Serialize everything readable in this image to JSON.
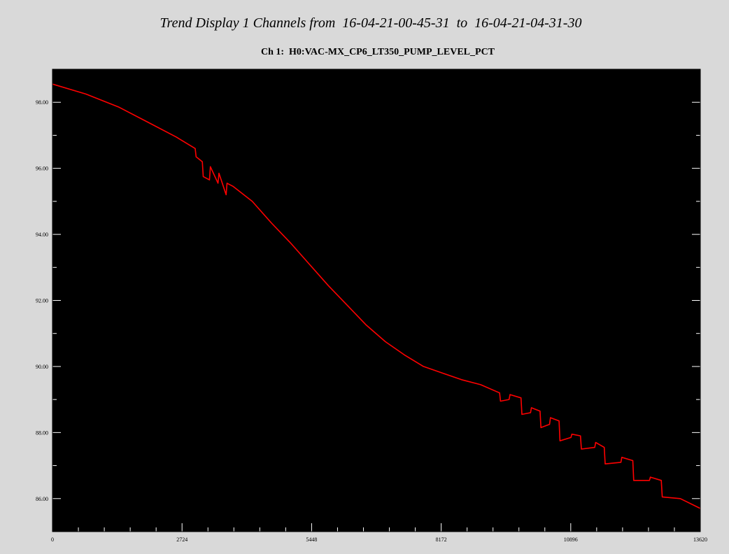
{
  "header": {
    "title": "Trend Display 1 Channels from  16-04-21-00-45-31  to  16-04-21-04-31-30",
    "subtitle": "Ch 1:  H0:VAC-MX_CP6_LT350_PUMP_LEVEL_PCT"
  },
  "colors": {
    "background": "#d9d9d9",
    "plot_background": "#000000",
    "series": "#ff0000"
  },
  "chart_data": {
    "type": "line",
    "title": "Trend Display 1 Channels from  16-04-21-00-45-31  to  16-04-21-04-31-30",
    "subtitle": "Ch 1:  H0:VAC-MX_CP6_LT350_PUMP_LEVEL_PCT",
    "xlabel": "",
    "ylabel": "",
    "xlim": [
      0,
      13620
    ],
    "ylim": [
      85.0,
      99.0
    ],
    "x_ticks": [
      0,
      2724,
      5448,
      8172,
      10896,
      13620
    ],
    "x_tick_labels": [
      "0",
      "2724",
      "5448",
      "8172",
      "10896",
      "13620"
    ],
    "y_ticks": [
      86,
      88,
      90,
      92,
      94,
      96,
      98
    ],
    "y_tick_labels": [
      "86.00",
      "88.00",
      "90.00",
      "92.00",
      "94.00",
      "96.00",
      "98.00"
    ],
    "grid": false,
    "series": [
      {
        "color": "#ff0000",
        "x": [
          0,
          700,
          1400,
          2000,
          2600,
          3000,
          3020,
          3150,
          3170,
          3300,
          3320,
          3480,
          3500,
          3650,
          3670,
          3800,
          4200,
          4600,
          5000,
          5400,
          5800,
          6200,
          6600,
          7000,
          7400,
          7800,
          8200,
          8600,
          9000,
          9400,
          9420,
          9600,
          9620,
          9850,
          9870,
          10050,
          10070,
          10250,
          10270,
          10450,
          10470,
          10650,
          10670,
          10900,
          10920,
          11100,
          11120,
          11400,
          11420,
          11600,
          11620,
          11950,
          11970,
          12200,
          12220,
          12550,
          12570,
          12800,
          12820,
          13200,
          13620
        ],
        "y": [
          98.55,
          98.25,
          97.85,
          97.4,
          96.95,
          96.6,
          96.35,
          96.2,
          95.75,
          95.65,
          96.05,
          95.55,
          95.85,
          95.2,
          95.55,
          95.45,
          95.0,
          94.35,
          93.75,
          93.1,
          92.45,
          91.85,
          91.25,
          90.75,
          90.35,
          90.0,
          89.8,
          89.6,
          89.45,
          89.2,
          88.95,
          89.0,
          89.15,
          89.05,
          88.55,
          88.6,
          88.75,
          88.65,
          88.15,
          88.25,
          88.45,
          88.35,
          87.75,
          87.85,
          87.95,
          87.9,
          87.5,
          87.55,
          87.7,
          87.55,
          87.05,
          87.1,
          87.25,
          87.15,
          86.55,
          86.55,
          86.65,
          86.55,
          86.05,
          86.0,
          85.7
        ]
      }
    ]
  }
}
